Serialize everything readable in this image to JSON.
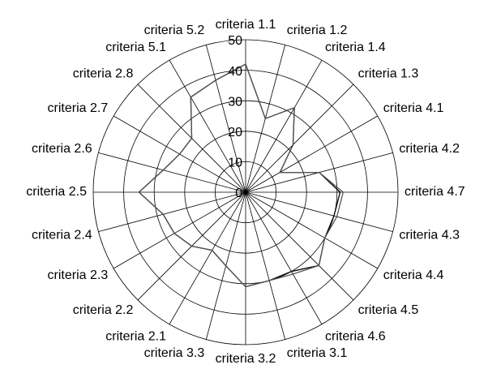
{
  "chart_data": {
    "type": "radar",
    "categories": [
      "criteria 1.1",
      "criteria 1.2",
      "criteria 1.4",
      "criteria 1.3",
      "criteria 4.1",
      "criteria 4.2",
      "criteria 4.7",
      "criteria 4.3",
      "criteria 4.4",
      "criteria 4.5",
      "criteria 4.6",
      "criteria 3.1",
      "criteria 3.2",
      "criteria 3.3",
      "criteria 2.1",
      "criteria 2.2",
      "criteria 2.3",
      "criteria 2.4",
      "criteria 2.5",
      "criteria 2.6",
      "criteria 2.7",
      "criteria 2.8",
      "criteria 5.1",
      "criteria 5.2"
    ],
    "series": [
      {
        "color": "#000000",
        "values": [
          42,
          25,
          32,
          22,
          13,
          25,
          31,
          30,
          30,
          34,
          30,
          30,
          31,
          25,
          22,
          25,
          27,
          28,
          35,
          28,
          25,
          25,
          36,
          38
        ]
      },
      {
        "color": "#555555",
        "values": [
          42,
          25,
          32,
          22,
          13,
          25,
          32,
          31,
          30,
          34,
          31,
          30,
          31,
          25,
          22,
          25,
          27,
          28,
          35,
          28,
          25,
          25,
          36,
          38
        ]
      }
    ],
    "ylim": [
      0,
      50
    ],
    "yticks": [
      0,
      10,
      20,
      30,
      40,
      50
    ],
    "grid": true
  }
}
